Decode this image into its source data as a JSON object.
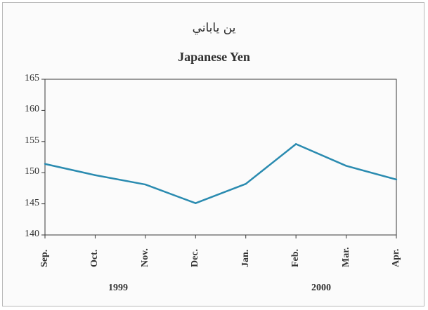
{
  "chart_data": {
    "type": "line",
    "title_arabic": "ين ياباني",
    "title": "Japanese Yen",
    "categories": [
      "Sep.",
      "Oct.",
      "Nov.",
      "Dec.",
      "Jan.",
      "Feb.",
      "Mar.",
      "Apr."
    ],
    "year_labels": [
      "1999",
      "2000"
    ],
    "series": [
      {
        "values": [
          151.4,
          149.6,
          148.1,
          145.1,
          148.2,
          154.6,
          151.1,
          148.9
        ]
      }
    ],
    "yticks": [
      "140",
      "145",
      "150",
      "155",
      "160",
      "165"
    ],
    "ylim": [
      140,
      165
    ],
    "line_color": "#2a8bb0",
    "grid": false
  }
}
